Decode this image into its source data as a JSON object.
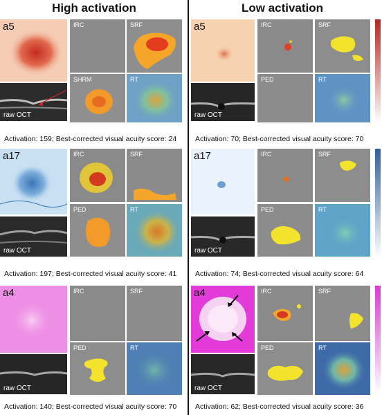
{
  "headings": {
    "high": "High activation",
    "low": "Low activation"
  },
  "labels": {
    "raw_oct": "raw OCT",
    "irc": "IRC",
    "srf": "SRF",
    "shrm": "SHRM",
    "ped": "PED",
    "rt": "RT"
  },
  "rows": [
    {
      "name": "a5",
      "high_caption": "Activation: 159; Best-corrected visual acuity score: 24",
      "low_caption": "Activation: 70; Best-corrected visual acuity score: 70"
    },
    {
      "name": "a17",
      "high_caption": "Activation: 197; Best-corrected visual acuity score: 41",
      "low_caption": "Activation: 74; Best-corrected visual acuity score: 64"
    },
    {
      "name": "a4",
      "high_caption": "Activation: 140; Best-corrected visual acuity score: 70",
      "low_caption": "Activation: 62; Best-corrected visual acuity score: 36"
    }
  ],
  "colors": {
    "a5": "#b5261e",
    "a17": "#2f5f9e",
    "a4": "#d63cd3"
  }
}
